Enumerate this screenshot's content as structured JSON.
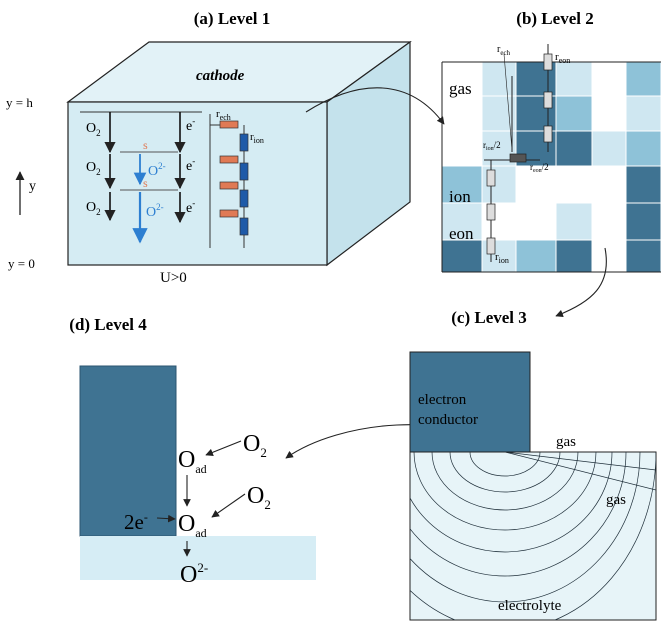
{
  "panels": {
    "a": {
      "title": "(a) Level 1",
      "top_label": "cathode",
      "y_h": "y = h",
      "y_0": "y = 0",
      "y_axis": "y",
      "bias": "U>0",
      "o2_labels": [
        "O",
        "O",
        "O"
      ],
      "o2_sub": "2",
      "e_labels": [
        "e",
        "e",
        "e"
      ],
      "e_sup": "-",
      "s_labels": [
        "s",
        "s"
      ],
      "oion_labels": [
        "O",
        "O"
      ],
      "oion_sup": "2-",
      "r_ech": "r",
      "r_ech_sub": "ech",
      "r_ion": "r",
      "r_ion_sub": "ion"
    },
    "b": {
      "title": "(b) Level 2",
      "labels": [
        "gas",
        "ion",
        "eon"
      ],
      "r_ech": "r",
      "r_ech_sub": "ech",
      "r_eon": "r",
      "r_eon_sub": "eon",
      "r_ion_half": "r",
      "r_ion_half_sub": "ion",
      "half": "/2",
      "r_eon_half": "r",
      "r_eon_half_sub": "eon",
      "r_ion": "r",
      "r_ion_sub": "ion"
    },
    "c": {
      "title": "(c) Level 3",
      "electron_conductor": [
        "electron",
        "conductor"
      ],
      "gas_top": "gas",
      "gas_right": "gas",
      "electrolyte": "electrolyte"
    },
    "d": {
      "title": "(d) Level 4",
      "o_ad": "O",
      "ad_sub": "ad",
      "o2": "O",
      "o2_sub": "2",
      "two_e": "2e",
      "e_sup": "-",
      "o_final": "O",
      "final_sup": "2-"
    }
  },
  "colors": {
    "dark": "#3f7392",
    "medium": "#8ec2d8",
    "light": "#cfe7f1",
    "pale": "#e7f4f8",
    "arrow_blue": "#2d7fd1",
    "resistor_blue": "#1e5aa8",
    "resistor_red": "#e07a55"
  }
}
